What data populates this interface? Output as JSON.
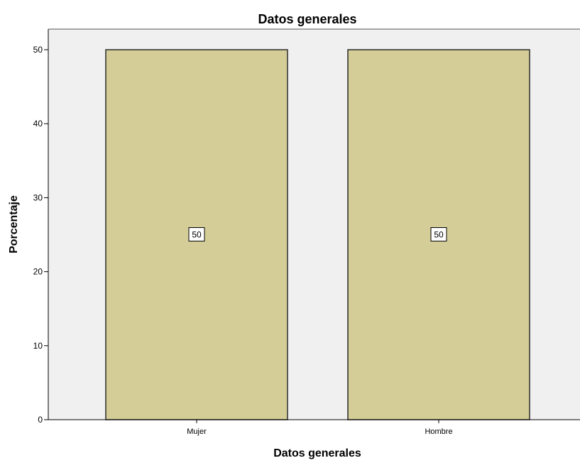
{
  "chart_data": {
    "type": "bar",
    "title": "Datos generales",
    "xlabel": "Datos generales",
    "ylabel": "Porcentaje",
    "categories": [
      "Mujer",
      "Hombre"
    ],
    "values": [
      50,
      50
    ],
    "data_labels": [
      "50",
      "50"
    ],
    "ylim": [
      0,
      50
    ],
    "yticks": [
      "0",
      "10",
      "20",
      "30",
      "40",
      "50"
    ],
    "grid": false,
    "legend": "none",
    "colors": {
      "bar_fill": "#d4cd98",
      "bar_stroke": "#2b2b2b",
      "plot_background": "#f0f0f0",
      "axis": "#000000"
    }
  }
}
